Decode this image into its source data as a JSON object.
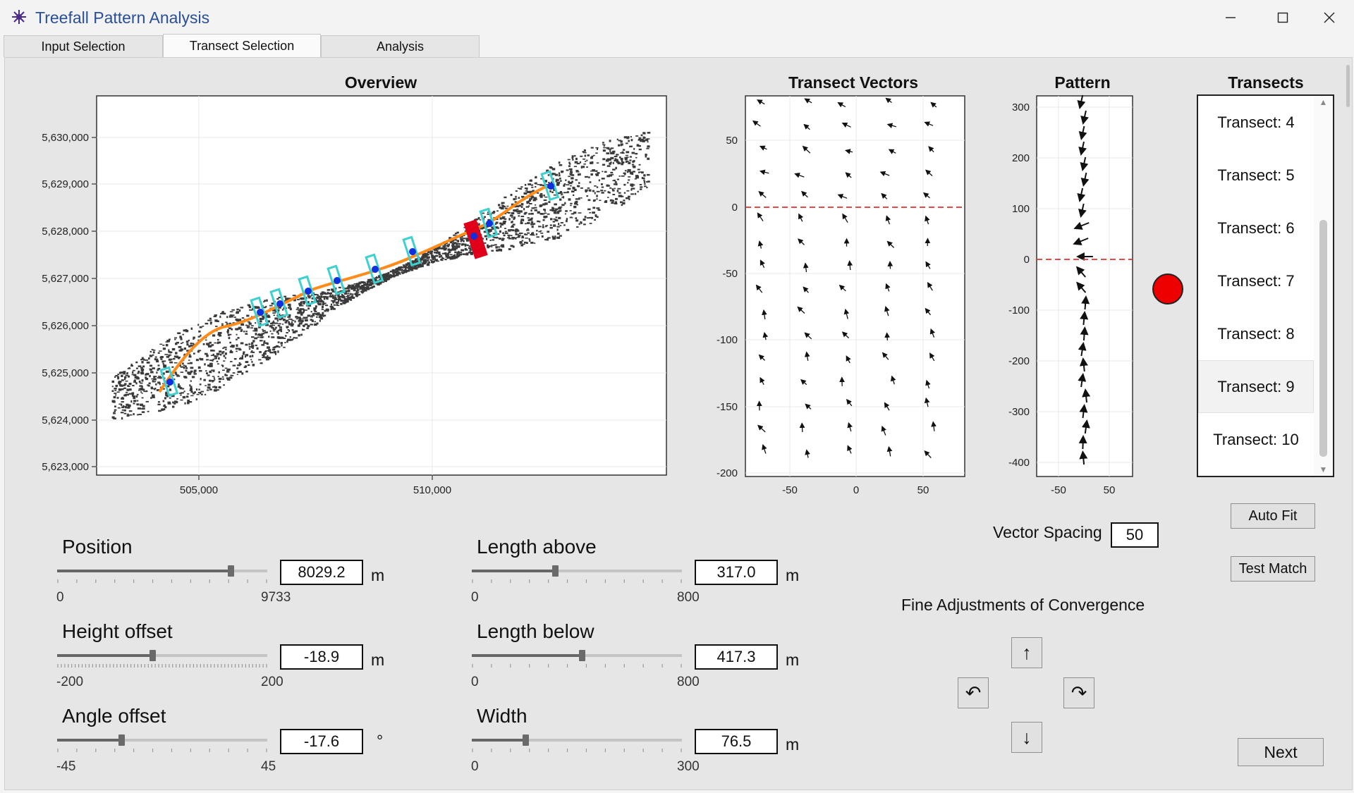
{
  "window": {
    "title": "Treefall Pattern Analysis",
    "app_icon": "tree-network-icon",
    "controls": [
      "minimize-icon",
      "maximize-icon",
      "close-icon"
    ]
  },
  "tabs": [
    {
      "label": "Input Selection",
      "active": false
    },
    {
      "label": "Transect Selection",
      "active": true
    },
    {
      "label": "Analysis",
      "active": false
    }
  ],
  "overview": {
    "title": "Overview",
    "x_ticks": [
      "505,000",
      "510,000"
    ],
    "y_ticks": [
      "5,630,000",
      "5,629,000",
      "5,628,000",
      "5,627,000",
      "5,626,000",
      "5,625,000",
      "5,624,000",
      "5,623,000"
    ],
    "path_color": "#ff8c1a",
    "transect_color": "#3fd0d0",
    "selected_transect_color": "#e0001a",
    "point_color": "#1030e0"
  },
  "vectors_plot": {
    "title": "Transect Vectors",
    "x_ticks": [
      "-50",
      "0",
      "50"
    ],
    "y_ticks": [
      "50",
      "0",
      "-50",
      "-100",
      "-150",
      "-200"
    ],
    "zero_line_color": "#e03030"
  },
  "pattern_plot": {
    "title": "Pattern",
    "x_ticks": [
      "-50",
      "50"
    ],
    "y_ticks": [
      "300",
      "200",
      "100",
      "0",
      "-100",
      "-200",
      "-300",
      "-400"
    ]
  },
  "status_indicator": {
    "color": "#ee0000",
    "state": "red"
  },
  "transects": {
    "title": "Transects",
    "items": [
      "Transect: 4",
      "Transect: 5",
      "Transect: 6",
      "Transect: 7",
      "Transect: 8",
      "Transect: 9",
      "Transect: 10"
    ],
    "selected": "Transect: 9"
  },
  "buttons": {
    "auto_fit": "Auto Fit",
    "test_match": "Test Match",
    "next": "Next"
  },
  "vector_spacing": {
    "label": "Vector Spacing",
    "value": "50"
  },
  "fine_adjustments": {
    "label": "Fine Adjustments of Convergence",
    "up": "↑",
    "down": "↓",
    "rotate_ccw": "↶",
    "rotate_cw": "↷"
  },
  "controls": {
    "position": {
      "label": "Position",
      "min": "0",
      "max": "9733",
      "value": "8029.2",
      "unit": "m",
      "fraction": 0.825
    },
    "height_offset": {
      "label": "Height offset",
      "min": "-200",
      "max": "200",
      "value": "-18.9",
      "unit": "m",
      "fraction": 0.453
    },
    "angle_offset": {
      "label": "Angle offset",
      "min": "-45",
      "max": "45",
      "value": "-17.6",
      "unit": "°",
      "fraction": 0.304
    },
    "length_above": {
      "label": "Length above",
      "min": "0",
      "max": "800",
      "value": "317.0",
      "unit": "m",
      "fraction": 0.396
    },
    "length_below": {
      "label": "Length below",
      "min": "0",
      "max": "800",
      "value": "417.3",
      "unit": "m",
      "fraction": 0.522
    },
    "width": {
      "label": "Width",
      "min": "0",
      "max": "300",
      "value": "76.5",
      "unit": "m",
      "fraction": 0.255
    }
  }
}
